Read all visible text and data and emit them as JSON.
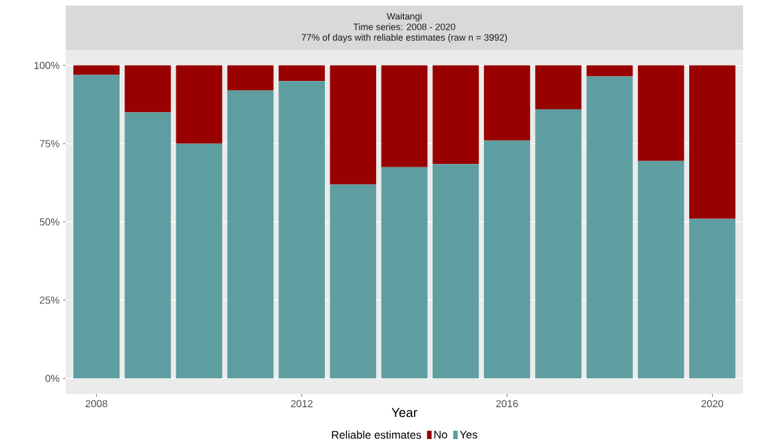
{
  "chart_data": {
    "type": "bar",
    "stacked": true,
    "title": "Waitangi",
    "subtitle": "Time series: 2008 - 2020",
    "annotations": [
      "77% of days with reliable estimates (raw n = 3992)"
    ],
    "xlabel": "Year",
    "legend_title": "Reliable estimates",
    "legend": "bottom",
    "grid": "y",
    "x": [
      2008,
      2009,
      2010,
      2011,
      2012,
      2013,
      2014,
      2015,
      2016,
      2017,
      2018,
      2019,
      2020
    ],
    "xlim": [
      2007.4,
      2020.6
    ],
    "xticks": [
      2008,
      2012,
      2016,
      2020
    ],
    "ylim": [
      -5,
      105
    ],
    "yticks": [
      {
        "value": 0,
        "label": "0%"
      },
      {
        "value": 25,
        "label": "25%"
      },
      {
        "value": 50,
        "label": "50%"
      },
      {
        "value": 75,
        "label": "75%"
      },
      {
        "value": 100,
        "label": "100%"
      }
    ],
    "series": [
      {
        "name": "Yes",
        "color": "#5f9ea0",
        "values": [
          97,
          85,
          75,
          92,
          95,
          62,
          67.5,
          68.5,
          76,
          86,
          96.5,
          69.5,
          51
        ]
      },
      {
        "name": "No",
        "color": "#990000",
        "values": [
          3,
          15,
          25,
          8,
          5,
          38,
          32.5,
          31.5,
          24,
          14,
          3.5,
          30.5,
          49
        ]
      }
    ]
  }
}
